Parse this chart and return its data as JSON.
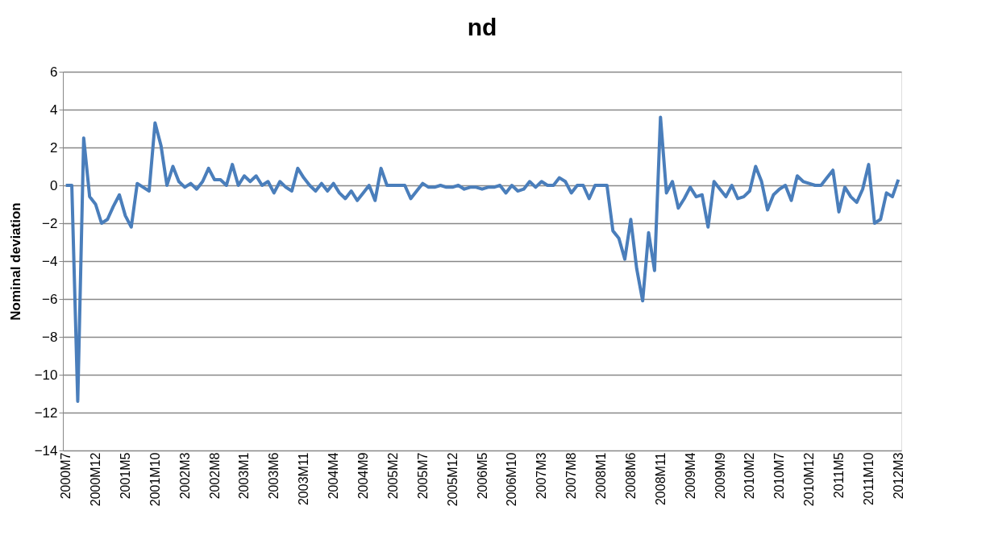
{
  "chart_data": {
    "type": "line",
    "title": "nd",
    "ylabel": "Nominal deviation",
    "categories": [
      "2000M7",
      null,
      null,
      null,
      null,
      "2000M12",
      null,
      null,
      null,
      null,
      "2001M5",
      null,
      null,
      null,
      null,
      "2001M10",
      null,
      null,
      null,
      null,
      "2002M3",
      null,
      null,
      null,
      null,
      "2002M8",
      null,
      null,
      null,
      null,
      "2003M1",
      null,
      null,
      null,
      null,
      "2003M6",
      null,
      null,
      null,
      null,
      "2003M11",
      null,
      null,
      null,
      null,
      "2004M4",
      null,
      null,
      null,
      null,
      "2004M9",
      null,
      null,
      null,
      null,
      "2005M2",
      null,
      null,
      null,
      null,
      "2005M7",
      null,
      null,
      null,
      null,
      "2005M12",
      null,
      null,
      null,
      null,
      "2006M5",
      null,
      null,
      null,
      null,
      "2006M10",
      null,
      null,
      null,
      null,
      "2007M3",
      null,
      null,
      null,
      null,
      "2007M8",
      null,
      null,
      null,
      null,
      "2008M1",
      null,
      null,
      null,
      null,
      "2008M6",
      null,
      null,
      null,
      null,
      "2008M11",
      null,
      null,
      null,
      null,
      "2009M4",
      null,
      null,
      null,
      null,
      "2009M9",
      null,
      null,
      null,
      null,
      "2010M2",
      null,
      null,
      null,
      null,
      "2010M7",
      null,
      null,
      null,
      null,
      "2010M12",
      null,
      null,
      null,
      null,
      "2011M5",
      null,
      null,
      null,
      null,
      "2011M10",
      null,
      null,
      null,
      null,
      "2012M3"
    ],
    "series": [
      {
        "color": "#4a7ebb",
        "values": [
          0,
          0,
          -11.4,
          2.5,
          -0.6,
          -1.0,
          -2.0,
          -1.8,
          -1.1,
          -0.5,
          -1.6,
          -2.2,
          0.1,
          -0.1,
          -0.3,
          3.3,
          2.1,
          0,
          1.0,
          0.2,
          -0.1,
          0.1,
          -0.2,
          0.2,
          0.9,
          0.3,
          0.3,
          0,
          1.1,
          0,
          0.5,
          0.2,
          0.5,
          0,
          0.2,
          -0.4,
          0.2,
          -0.1,
          -0.3,
          0.9,
          0.4,
          0,
          -0.3,
          0.1,
          -0.3,
          0.1,
          -0.4,
          -0.7,
          -0.3,
          -0.8,
          -0.4,
          0,
          -0.8,
          0.9,
          0,
          0,
          0,
          0,
          -0.7,
          -0.3,
          0.1,
          -0.1,
          -0.1,
          0,
          -0.1,
          -0.1,
          0,
          -0.2,
          -0.1,
          -0.1,
          -0.2,
          -0.1,
          -0.1,
          0,
          -0.4,
          0,
          -0.3,
          -0.2,
          0.2,
          -0.1,
          0.2,
          0,
          0,
          0.4,
          0.2,
          -0.4,
          0,
          0,
          -0.7,
          0,
          0,
          0,
          -2.4,
          -2.8,
          -3.9,
          -1.8,
          -4.4,
          -6.1,
          -2.5,
          -4.5,
          3.6,
          -0.4,
          0.2,
          -1.2,
          -0.7,
          -0.1,
          -0.6,
          -0.5,
          -2.2,
          0.2,
          -0.2,
          -0.6,
          0,
          -0.7,
          -0.6,
          -0.3,
          1.0,
          0.2,
          -1.3,
          -0.5,
          -0.2,
          0,
          -0.8,
          0.5,
          0.2,
          0.1,
          0,
          0,
          0.4,
          0.8,
          -1.4,
          -0.1,
          -0.6,
          -0.9,
          -0.2,
          1.1,
          -2.0,
          -1.8,
          -0.4,
          -0.6,
          0.3
        ]
      }
    ],
    "ylim": [
      -14,
      6
    ],
    "yticks": [
      -14,
      -12,
      -10,
      -8,
      -6,
      -4,
      -2,
      0,
      2,
      4,
      6
    ],
    "grid": "y"
  }
}
